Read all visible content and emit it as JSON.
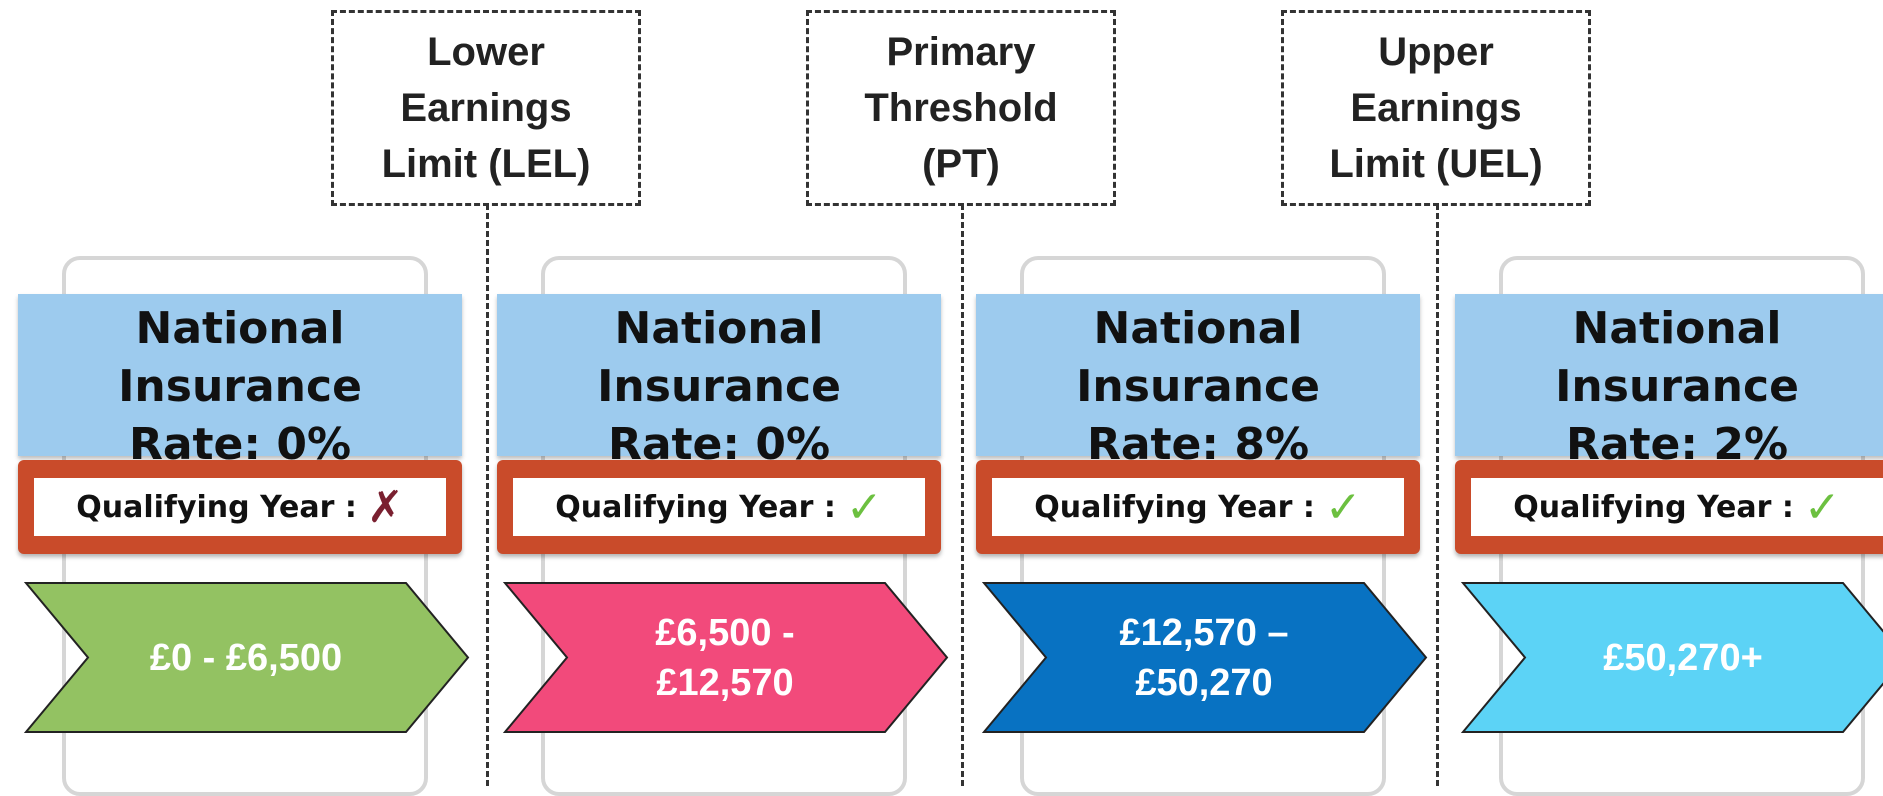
{
  "thresholds": [
    "Lower Earnings Limit (LEL)",
    "Primary Threshold (PT)",
    "Upper Earnings Limit (UEL)"
  ],
  "panels": [
    {
      "title": "National Insurance",
      "rate_label": "Rate:",
      "rate": "0%",
      "qualifying": "Qualifying Year :",
      "mark": "✗",
      "band": "£0 - £6,500",
      "color": "#93c262"
    },
    {
      "title": "National Insurance",
      "rate_label": "Rate:",
      "rate": "0%",
      "qualifying": "Qualifying Year :",
      "mark": "✓",
      "band": "£6,500 - £12,570",
      "color": "#f24a7b"
    },
    {
      "title": "National Insurance",
      "rate_label": "Rate:",
      "rate": "8%",
      "qualifying": "Qualifying Year :",
      "mark": "✓",
      "band": "£12,570 – £50,270",
      "color": "#0872c2"
    },
    {
      "title": "National Insurance",
      "rate_label": "Rate:",
      "rate": "2%",
      "qualifying": "Qualifying Year :",
      "mark": "✓",
      "band": "£50,270+",
      "color": "#5cd3f6"
    }
  ]
}
